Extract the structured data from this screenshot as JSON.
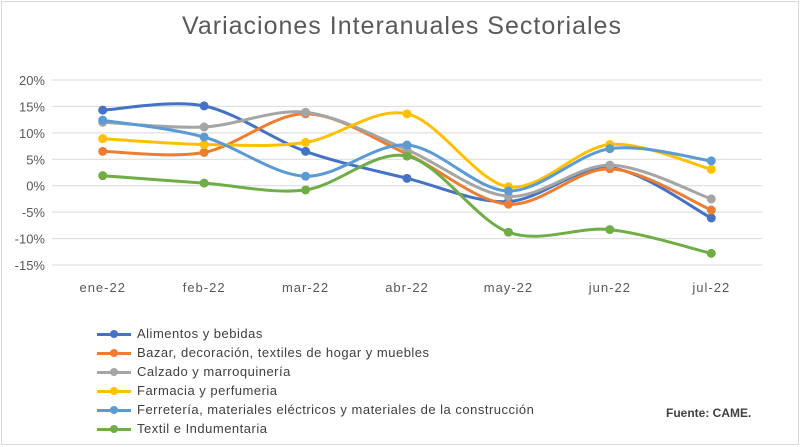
{
  "chart_data": {
    "type": "line",
    "title": "Variaciones Interanuales Sectoriales",
    "categories": [
      "ene-22",
      "feb-22",
      "mar-22",
      "abr-22",
      "may-22",
      "jun-22",
      "jul-22"
    ],
    "y_ticks": [
      "20%",
      "15%",
      "10%",
      "5%",
      "0%",
      "-5%",
      "-10%",
      "-15%"
    ],
    "ylim": [
      -15,
      20
    ],
    "y_unit": "%",
    "grid": "horizontal",
    "legend_position": "bottom-left",
    "series": [
      {
        "name": "Alimentos y bebidas",
        "color": "#4472c4",
        "values": [
          14.3,
          15.1,
          6.5,
          1.4,
          -3.0,
          3.4,
          -6.1
        ]
      },
      {
        "name": "Bazar, decoración, textiles de hogar y muebles",
        "color": "#ed7d31",
        "values": [
          6.5,
          6.3,
          13.6,
          6.0,
          -3.5,
          3.2,
          -4.6
        ]
      },
      {
        "name": "Calzado y marroquinería",
        "color": "#a5a5a5",
        "values": [
          12.0,
          11.1,
          13.9,
          6.8,
          -2.0,
          3.9,
          -2.5
        ]
      },
      {
        "name": "Farmacia y perfumeria",
        "color": "#ffc000",
        "values": [
          8.9,
          7.8,
          8.2,
          13.6,
          -0.2,
          7.8,
          3.1
        ]
      },
      {
        "name": "Ferretería, materiales eléctricos y materiales de la construcción",
        "color": "#5b9bd5",
        "values": [
          12.4,
          9.2,
          1.8,
          7.7,
          -1.0,
          7.0,
          4.7
        ]
      },
      {
        "name": "Textil e Indumentaria",
        "color": "#70ad47",
        "values": [
          1.9,
          0.5,
          -0.8,
          5.6,
          -8.8,
          -8.3,
          -12.8
        ]
      }
    ]
  },
  "source_note": "Fuente: CAME."
}
